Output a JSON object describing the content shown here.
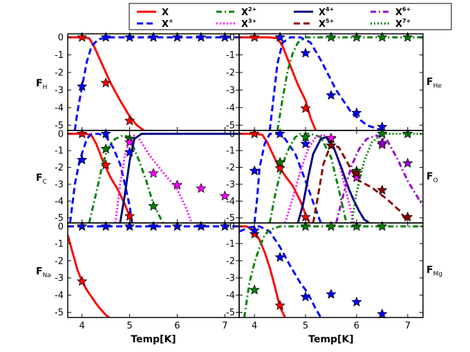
{
  "chart_data": {
    "type": "line",
    "xlim": [
      3.7,
      7.3
    ],
    "ylim": [
      -5.3,
      0.2
    ],
    "xticks": [
      "4",
      "5",
      "6",
      "7"
    ],
    "yticks": [
      "0",
      "-1",
      "-2",
      "-3",
      "-4",
      "-5"
    ],
    "xlabel": "Temp[K]",
    "legend": [
      {
        "id": "X",
        "base": "X",
        "sup": "",
        "color": "#ff0000",
        "dash": "solid"
      },
      {
        "id": "X1",
        "base": "X",
        "sup": "+",
        "color": "#0000ff",
        "dash": "dash"
      },
      {
        "id": "X2",
        "base": "X",
        "sup": "2+",
        "color": "#008000",
        "dash": "dashdot"
      },
      {
        "id": "X3",
        "base": "X",
        "sup": "3+",
        "color": "#ff00ff",
        "dash": "dot"
      },
      {
        "id": "X4",
        "base": "X",
        "sup": "4+",
        "color": "#000080",
        "dash": "solid"
      },
      {
        "id": "X5",
        "base": "X",
        "sup": "5+",
        "color": "#8b0000",
        "dash": "dash"
      },
      {
        "id": "X6",
        "base": "X",
        "sup": "6+",
        "color": "#9400d3",
        "dash": "dashdot"
      },
      {
        "id": "X7",
        "base": "X",
        "sup": "7+",
        "color": "#008000",
        "dash": "dot"
      }
    ],
    "panels": [
      {
        "id": "H",
        "element": "H",
        "label_main": "F",
        "label_sub": "H",
        "label_side": "left",
        "show_xticks": false,
        "series": [
          {
            "ion": "X",
            "x": [
              3.7,
              4.0,
              4.15,
              4.25,
              4.4,
              4.6,
              4.8,
              5.0,
              5.15,
              5.3
            ],
            "y": [
              0,
              0,
              -0.05,
              -0.5,
              -1.4,
              -2.6,
              -3.6,
              -4.5,
              -5.0,
              -5.3
            ]
          },
          {
            "ion": "X1",
            "x": [
              3.85,
              3.9,
              4.0,
              4.1,
              4.2,
              4.35,
              4.6,
              5.0,
              6.0,
              7.3
            ],
            "y": [
              -5.3,
              -4.3,
              -2.8,
              -1.4,
              -0.5,
              -0.1,
              0,
              0,
              0,
              0
            ]
          }
        ],
        "stars": [
          {
            "ion": "X",
            "x": [
              4.0,
              4.5,
              5.0
            ],
            "y": [
              0,
              -2.6,
              -4.75
            ]
          },
          {
            "ion": "X1",
            "x": [
              4.0,
              4.5,
              5.0,
              5.5,
              6.0,
              6.5,
              7.0
            ],
            "y": [
              -2.8,
              0,
              0,
              0,
              0,
              0,
              0
            ]
          }
        ]
      },
      {
        "id": "He",
        "element": "He",
        "label_main": "F",
        "label_sub": "He",
        "label_side": "right",
        "show_xticks": false,
        "series": [
          {
            "ion": "X",
            "x": [
              3.7,
              4.3,
              4.45,
              4.55,
              4.7,
              4.85,
              5.0,
              5.1,
              5.2
            ],
            "y": [
              0,
              0,
              -0.05,
              -0.5,
              -1.6,
              -2.7,
              -3.6,
              -4.6,
              -5.3
            ]
          },
          {
            "ion": "X1",
            "x": [
              4.3,
              4.45,
              4.55,
              4.7,
              4.9,
              5.1,
              5.3,
              5.6,
              5.9,
              6.2,
              6.5
            ],
            "y": [
              -5.3,
              -1.5,
              -0.3,
              0,
              0,
              -0.3,
              -1.3,
              -3.0,
              -4.3,
              -5.0,
              -5.3
            ]
          },
          {
            "ion": "X2",
            "x": [
              4.45,
              4.55,
              4.65,
              4.75,
              4.85,
              5.0,
              5.3,
              6.0,
              7.3
            ],
            "y": [
              -5.3,
              -3.5,
              -1.9,
              -0.9,
              -0.3,
              0,
              0,
              0,
              0
            ]
          }
        ],
        "stars": [
          {
            "ion": "X",
            "x": [
              4.0,
              4.5,
              5.0
            ],
            "y": [
              0,
              0,
              -4.05
            ]
          },
          {
            "ion": "X1",
            "x": [
              4.5,
              5.0,
              5.5,
              6.0,
              6.5
            ],
            "y": [
              0,
              -0.9,
              -3.3,
              -4.3,
              -5.1
            ]
          },
          {
            "ion": "X2",
            "x": [
              5.5,
              6.0,
              6.5,
              7.0
            ],
            "y": [
              0,
              0,
              0,
              0
            ]
          }
        ]
      },
      {
        "id": "C",
        "element": "C",
        "label_main": "F",
        "label_sub": "C",
        "label_side": "left",
        "show_xticks": false,
        "series": [
          {
            "ion": "X",
            "x": [
              3.7,
              4.1,
              4.2,
              4.3,
              4.45,
              4.6,
              4.75,
              4.9,
              5.0,
              5.05
            ],
            "y": [
              0,
              0,
              -0.1,
              -0.6,
              -1.7,
              -2.6,
              -3.3,
              -4.2,
              -4.9,
              -5.3
            ]
          },
          {
            "ion": "X1",
            "x": [
              3.75,
              3.85,
              3.95,
              4.1,
              4.2,
              4.35,
              4.5,
              4.65,
              4.8,
              4.9,
              5.0,
              5.05
            ],
            "y": [
              -5.3,
              -3.0,
              -1.6,
              -0.3,
              0,
              0,
              -0.15,
              -0.8,
              -1.8,
              -3.0,
              -4.3,
              -5.3
            ]
          },
          {
            "ion": "X2",
            "x": [
              4.15,
              4.3,
              4.4,
              4.5,
              4.6,
              4.7,
              4.85,
              4.95,
              5.05,
              5.2,
              5.35,
              5.5,
              5.7
            ],
            "y": [
              -5.3,
              -3.5,
              -2.2,
              -1.2,
              -0.6,
              -0.3,
              -0.1,
              -0.15,
              -0.6,
              -1.6,
              -2.8,
              -4.2,
              -5.3
            ]
          },
          {
            "ion": "X3",
            "x": [
              4.7,
              4.8,
              4.9,
              5.0,
              5.1,
              5.2,
              5.4,
              5.7,
              6.0,
              6.2,
              6.3
            ],
            "y": [
              -5.3,
              -3.0,
              -1.3,
              -0.4,
              -0.1,
              -0.3,
              -1.2,
              -2.3,
              -3.3,
              -4.5,
              -5.3
            ]
          },
          {
            "ion": "X4",
            "x": [
              4.8,
              4.9,
              5.0,
              5.1,
              5.25,
              5.5,
              6.0,
              7.3
            ],
            "y": [
              -5.3,
              -3.6,
              -1.6,
              -0.3,
              0,
              0,
              0,
              0
            ]
          }
        ],
        "stars": [
          {
            "ion": "X",
            "x": [
              4.0,
              4.5,
              5.0
            ],
            "y": [
              0,
              -1.85,
              -4.9
            ]
          },
          {
            "ion": "X1",
            "x": [
              4.0,
              4.5,
              5.0
            ],
            "y": [
              -1.55,
              0,
              -1.1
            ]
          },
          {
            "ion": "X2",
            "x": [
              4.5,
              5.0,
              5.5
            ],
            "y": [
              -0.9,
              -0.3,
              -4.3
            ]
          },
          {
            "ion": "X3",
            "x": [
              5.0,
              5.5,
              6.0,
              6.5,
              7.0
            ],
            "y": [
              -0.5,
              -2.35,
              -3.05,
              -3.25,
              -3.7
            ]
          }
        ]
      },
      {
        "id": "O",
        "element": "O",
        "label_main": "F",
        "label_sub": "O",
        "label_side": "right",
        "show_xticks": false,
        "series": [
          {
            "ion": "X",
            "x": [
              3.7,
              4.0,
              4.15,
              4.25,
              4.45,
              4.6,
              4.75,
              4.9,
              5.0,
              5.08
            ],
            "y": [
              0,
              0,
              -0.05,
              -0.5,
              -1.8,
              -2.5,
              -3.1,
              -4.0,
              -4.8,
              -5.3
            ]
          },
          {
            "ion": "X1",
            "x": [
              4.0,
              4.05,
              4.1,
              4.2,
              4.3,
              4.45,
              4.6,
              4.8,
              5.0,
              5.2,
              5.3
            ],
            "y": [
              -5.3,
              -3.9,
              -2.0,
              -0.6,
              0,
              0,
              -0.3,
              -1.2,
              -2.8,
              -4.5,
              -5.3
            ]
          },
          {
            "ion": "X2",
            "x": [
              4.3,
              4.4,
              4.5,
              4.6,
              4.7,
              4.8,
              4.9,
              5.1,
              5.3,
              5.5,
              5.65,
              5.8
            ],
            "y": [
              -5.3,
              -3.7,
              -2.4,
              -1.4,
              -0.7,
              -0.2,
              0,
              0,
              -0.2,
              -1.4,
              -3.3,
              -5.3
            ]
          },
          {
            "ion": "X3",
            "x": [
              4.6,
              4.75,
              4.9,
              5.05,
              5.2,
              5.35,
              5.5,
              5.65,
              5.8,
              5.95
            ],
            "y": [
              -5.3,
              -3.8,
              -2.2,
              -0.9,
              -0.2,
              -0.05,
              -0.4,
              -1.6,
              -3.5,
              -5.3
            ]
          },
          {
            "ion": "X4",
            "x": [
              4.85,
              4.95,
              5.05,
              5.15,
              5.3,
              5.4,
              5.55,
              5.7,
              5.85,
              5.95,
              6.05,
              6.15,
              6.25
            ],
            "y": [
              -5.3,
              -4.2,
              -2.6,
              -1.2,
              -0.3,
              -0.2,
              -0.8,
              -2.0,
              -3.3,
              -4.0,
              -4.6,
              -5.1,
              -5.3
            ]
          },
          {
            "ion": "X5",
            "x": [
              5.15,
              5.25,
              5.35,
              5.5,
              5.65,
              5.8,
              6.0,
              6.3,
              6.6,
              6.85,
              7.0
            ],
            "y": [
              -5.3,
              -3.6,
              -1.8,
              -0.6,
              -0.8,
              -1.6,
              -2.7,
              -3.2,
              -3.9,
              -4.6,
              -5.3
            ]
          },
          {
            "ion": "X6",
            "x": [
              5.6,
              5.75,
              5.9,
              6.05,
              6.2,
              6.4,
              6.6,
              6.8,
              7.0,
              7.3
            ],
            "y": [
              -5.3,
              -3.5,
              -1.9,
              -0.9,
              -0.3,
              -0.1,
              -0.4,
              -1.5,
              -2.8,
              -4.3
            ]
          },
          {
            "ion": "X7",
            "x": [
              5.9,
              6.0,
              6.15,
              6.3,
              6.5,
              6.7,
              7.0,
              7.3
            ],
            "y": [
              -5.3,
              -3.5,
              -1.6,
              -0.5,
              0,
              0,
              0,
              0
            ]
          }
        ],
        "stars": [
          {
            "ion": "X",
            "x": [
              4.0,
              4.5,
              5.0
            ],
            "y": [
              0,
              -2.05,
              -4.95
            ]
          },
          {
            "ion": "X1",
            "x": [
              4.0,
              4.5,
              5.0
            ],
            "y": [
              -2.2,
              0,
              -0.6
            ]
          },
          {
            "ion": "X2",
            "x": [
              4.5,
              5.0,
              5.5,
              6.0,
              6.5,
              7.0
            ],
            "y": [
              -1.7,
              -0.2,
              -0.3,
              -2.2,
              0,
              0
            ]
          },
          {
            "ion": "X3",
            "x": [
              5.5,
              6.0,
              6.5
            ],
            "y": [
              -0.25,
              -2.6,
              -0.65
            ]
          },
          {
            "ion": "X5",
            "x": [
              5.5,
              6.0,
              6.5,
              7.0
            ],
            "y": [
              -0.7,
              -2.35,
              -3.35,
              -4.95
            ]
          },
          {
            "ion": "X6",
            "x": [
              6.5,
              7.0
            ],
            "y": [
              -0.55,
              -1.75
            ]
          }
        ]
      },
      {
        "id": "Na",
        "element": "Na",
        "label_main": "F",
        "label_sub": "Na",
        "label_side": "left",
        "show_xticks": true,
        "series": [
          {
            "ion": "X",
            "x": [
              3.7,
              3.8,
              3.9,
              4.0,
              4.1,
              4.2,
              4.3,
              4.4,
              4.5,
              4.57
            ],
            "y": [
              -0.5,
              -1.5,
              -2.5,
              -3.2,
              -3.7,
              -4.1,
              -4.5,
              -4.85,
              -5.15,
              -5.3
            ]
          },
          {
            "ion": "X1",
            "x": [
              3.7,
              4.0,
              5.0,
              6.0,
              7.3
            ],
            "y": [
              0,
              0,
              0,
              0,
              0
            ]
          }
        ],
        "stars": [
          {
            "ion": "X",
            "x": [
              4.0
            ],
            "y": [
              -3.2
            ]
          },
          {
            "ion": "X1",
            "x": [
              4.0,
              4.5,
              5.0,
              5.5,
              6.0,
              6.5,
              7.0
            ],
            "y": [
              0,
              0,
              0,
              0,
              0,
              0,
              0
            ]
          }
        ]
      },
      {
        "id": "Mg",
        "element": "Mg",
        "label_main": "F",
        "label_sub": "Mg",
        "label_side": "right",
        "show_xticks": true,
        "series": [
          {
            "ion": "X",
            "x": [
              3.7,
              3.85,
              4.0,
              4.1,
              4.2,
              4.3,
              4.4,
              4.5,
              4.55,
              4.6
            ],
            "y": [
              0,
              0,
              -0.3,
              -0.8,
              -1.5,
              -2.4,
              -3.5,
              -4.7,
              -5.0,
              -5.3
            ]
          },
          {
            "ion": "X1",
            "x": [
              3.7,
              3.9,
              4.1,
              4.3,
              4.5,
              4.7,
              4.9,
              5.0,
              5.1,
              5.2,
              5.3
            ],
            "y": [
              -0.3,
              -0.05,
              0,
              -0.3,
              -1.2,
              -2.3,
              -3.3,
              -3.7,
              -4.2,
              -4.8,
              -5.3
            ]
          },
          {
            "ion": "X2",
            "x": [
              3.8,
              3.85,
              3.9,
              4.0,
              4.1,
              4.2,
              4.3,
              4.5,
              4.7,
              5.0,
              6.0,
              7.3
            ],
            "y": [
              -5.3,
              -4.3,
              -3.3,
              -2.1,
              -1.2,
              -0.5,
              -0.2,
              0,
              0,
              0,
              0,
              0
            ]
          }
        ],
        "stars": [
          {
            "ion": "X",
            "x": [
              4.0,
              4.5
            ],
            "y": [
              -0.45,
              -4.6
            ]
          },
          {
            "ion": "X1",
            "x": [
              4.0,
              4.5,
              5.0,
              5.5,
              6.0,
              6.5
            ],
            "y": [
              -0.25,
              -1.8,
              -4.1,
              -3.95,
              -4.4,
              -5.1
            ]
          },
          {
            "ion": "X2",
            "x": [
              4.0,
              5.0,
              5.5,
              6.0,
              6.5
            ],
            "y": [
              -3.7,
              0,
              0,
              0,
              0
            ]
          }
        ]
      }
    ]
  }
}
